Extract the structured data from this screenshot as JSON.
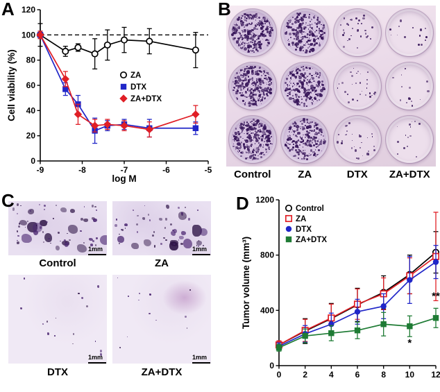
{
  "figure": {
    "panels": {
      "a": {
        "label": "A"
      },
      "b": {
        "label": "B",
        "column_labels": [
          "Control",
          "ZA",
          "DTX",
          "ZA+DTX"
        ],
        "colony_counts": [
          300,
          240,
          30,
          14
        ],
        "well_colors": [
          "#d6c3e0",
          "#d9c7e3",
          "#e9d9e9",
          "#eddfec"
        ],
        "colony_color": "#38175a"
      },
      "c": {
        "label": "C",
        "items": [
          {
            "name": "Control",
            "scale_label": "1mm",
            "colonies": 28,
            "small_dots": 34,
            "size": "large",
            "smudge": false
          },
          {
            "name": "ZA",
            "scale_label": "1mm",
            "colonies": 26,
            "small_dots": 30,
            "size": "large",
            "smudge": false
          },
          {
            "name": "DTX",
            "scale_label": "1mm",
            "colonies": 16,
            "small_dots": 0,
            "size": "small",
            "smudge": false
          },
          {
            "name": "ZA+DTX",
            "scale_label": "1mm",
            "colonies": 12,
            "small_dots": 0,
            "size": "small",
            "smudge": true
          }
        ]
      },
      "d": {
        "label": "D"
      }
    }
  },
  "chart_data": [
    {
      "id": "cell-viability",
      "type": "line",
      "title": "",
      "xlabel": "log M",
      "ylabel": "Cell viability (%)",
      "xlim": [
        -9,
        -5
      ],
      "ylim": [
        0,
        120
      ],
      "xticks": [
        -9,
        -8,
        -7,
        -6,
        -5
      ],
      "yticks": [
        0,
        20,
        40,
        60,
        80,
        100,
        120
      ],
      "grid": false,
      "reference_line_y": 100,
      "legend_position": "center",
      "x": [
        -9,
        -8.4,
        -8.1,
        -7.7,
        -7.4,
        -7,
        -6.4,
        -5.3
      ],
      "series": [
        {
          "name": "ZA",
          "color": "#000000",
          "marker": "circle-open",
          "values": [
            100,
            87,
            90,
            85,
            92,
            96,
            95,
            88
          ],
          "errors": [
            9,
            4,
            3,
            12,
            12,
            10,
            10,
            14
          ]
        },
        {
          "name": "DTX",
          "color": "#2026c8",
          "marker": "square-filled",
          "values": [
            100,
            57,
            45,
            24,
            28,
            29,
            26,
            26
          ],
          "errors": [
            3,
            5,
            7,
            10,
            4,
            4,
            7,
            5
          ]
        },
        {
          "name": "ZA+DTX",
          "color": "#e01f26",
          "marker": "diamond-filled",
          "values": [
            100,
            65,
            37,
            28,
            29,
            28,
            25,
            37
          ],
          "errors": [
            3,
            6,
            8,
            5,
            4,
            4,
            6,
            7
          ]
        }
      ]
    },
    {
      "id": "tumor-volume",
      "type": "line",
      "title": "",
      "xlabel": "",
      "ylabel": "Tumor volume (mm³)",
      "xlim": [
        0,
        12
      ],
      "ylim": [
        0,
        1200
      ],
      "xticks": [
        0,
        2,
        4,
        6,
        8,
        10,
        12
      ],
      "yticks": [
        0,
        400,
        800,
        1200
      ],
      "grid": false,
      "legend_position": "top-left",
      "x": [
        0,
        2,
        4,
        6,
        8,
        10,
        12
      ],
      "series": [
        {
          "name": "Control",
          "color": "#000000",
          "marker": "circle-open",
          "values": [
            150,
            250,
            340,
            440,
            530,
            660,
            820
          ],
          "errors": [
            30,
            90,
            110,
            120,
            120,
            140,
            150
          ]
        },
        {
          "name": "ZA",
          "color": "#e01f26",
          "marker": "square-open",
          "values": [
            150,
            255,
            345,
            445,
            520,
            650,
            790
          ],
          "errors": [
            30,
            80,
            100,
            110,
            115,
            130,
            320
          ]
        },
        {
          "name": "DTX",
          "color": "#2026c8",
          "marker": "circle-filled",
          "values": [
            140,
            230,
            300,
            390,
            430,
            620,
            750
          ],
          "errors": [
            25,
            60,
            80,
            90,
            90,
            170,
            120
          ]
        },
        {
          "name": "ZA+DTX",
          "color": "#1e7b34",
          "marker": "square-filled",
          "values": [
            130,
            215,
            235,
            255,
            300,
            285,
            345
          ],
          "errors": [
            25,
            50,
            55,
            60,
            85,
            75,
            70
          ]
        }
      ],
      "annotations": [
        {
          "text": "*",
          "x": 10,
          "y": 140
        },
        {
          "text": "**",
          "x": 12,
          "y": 480
        }
      ]
    }
  ]
}
